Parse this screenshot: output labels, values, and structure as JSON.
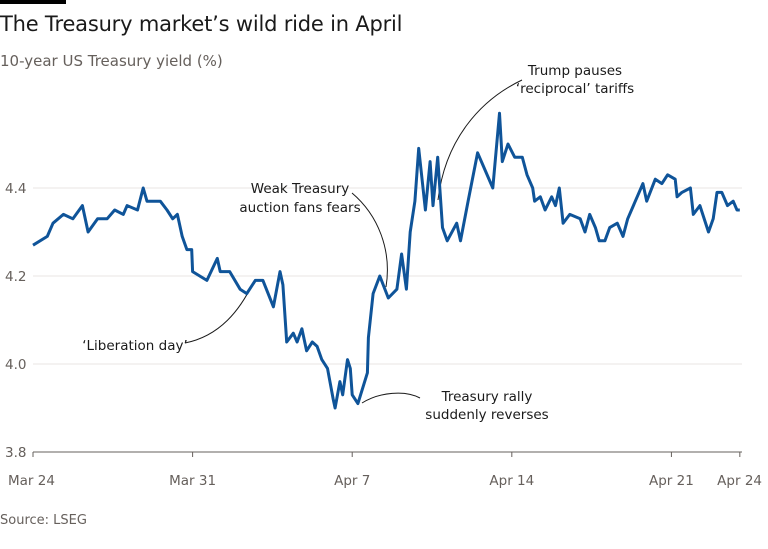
{
  "title": "The Treasury market’s wild ride in April",
  "subtitle": "10-year US Treasury yield (%)",
  "source": "Source: LSEG",
  "colors": {
    "line": "#0f5499",
    "grid": "#e9e6e3",
    "axis": "#66605c",
    "annotation": "#1a1a1a"
  },
  "chart_data": {
    "type": "line",
    "title": "The Treasury market’s wild ride in April",
    "ylabel": "10-year US Treasury yield (%)",
    "xlabel": "",
    "ylim": [
      3.8,
      4.6
    ],
    "yticks": [
      3.8,
      4.0,
      4.2,
      4.4
    ],
    "ytick_labels": [
      "3.8",
      "4.0",
      "4.2",
      "4.4"
    ],
    "xlim": [
      "Mar 24 00:00",
      "Apr 24 00:00"
    ],
    "xticks": [
      "Mar 24",
      "Mar 31",
      "Apr 7",
      "Apr 14",
      "Apr 21",
      "Apr 24"
    ],
    "grid": true,
    "legend": "none",
    "series": [
      {
        "points": [
          [
            "Mar 24 00:00",
            4.27
          ],
          [
            "Mar 24 15:00",
            4.29
          ],
          [
            "Mar 24 21:00",
            4.32
          ],
          [
            "Mar 25 08:00",
            4.34
          ],
          [
            "Mar 25 18:00",
            4.33
          ],
          [
            "Mar 26 04:00",
            4.36
          ],
          [
            "Mar 26 10:00",
            4.3
          ],
          [
            "Mar 26 20:00",
            4.33
          ],
          [
            "Mar 27 06:00",
            4.33
          ],
          [
            "Mar 27 14:00",
            4.35
          ],
          [
            "Mar 27 23:00",
            4.34
          ],
          [
            "Mar 28 03:00",
            4.36
          ],
          [
            "Mar 28 14:00",
            4.35
          ],
          [
            "Mar 28 20:00",
            4.4
          ],
          [
            "Mar 29 00:00",
            4.37
          ],
          [
            "Mar 29 14:00",
            4.37
          ],
          [
            "Mar 29 21:00",
            4.35
          ],
          [
            "Mar 30 03:00",
            4.33
          ],
          [
            "Mar 30 08:00",
            4.34
          ],
          [
            "Mar 30 13:00",
            4.29
          ],
          [
            "Mar 30 18:00",
            4.26
          ],
          [
            "Mar 30 23:00",
            4.26
          ],
          [
            "Mar 31 00:00",
            4.21
          ],
          [
            "Mar 31 15:00",
            4.19
          ],
          [
            "Apr 1 02:00",
            4.24
          ],
          [
            "Apr 1 05:00",
            4.21
          ],
          [
            "Apr 1 15:00",
            4.21
          ],
          [
            "Apr 2 02:00",
            4.17
          ],
          [
            "Apr 2 09:00",
            4.16
          ],
          [
            "Apr 2 18:00",
            4.19
          ],
          [
            "Apr 3 02:00",
            4.19
          ],
          [
            "Apr 3 13:00",
            4.13
          ],
          [
            "Apr 3 20:00",
            4.21
          ],
          [
            "Apr 3 23:00",
            4.18
          ],
          [
            "Apr 4 03:00",
            4.05
          ],
          [
            "Apr 4 10:00",
            4.07
          ],
          [
            "Apr 4 14:00",
            4.05
          ],
          [
            "Apr 4 19:00",
            4.08
          ],
          [
            "Apr 5 00:00",
            4.03
          ],
          [
            "Apr 5 06:00",
            4.05
          ],
          [
            "Apr 5 11:00",
            4.04
          ],
          [
            "Apr 5 16:00",
            4.01
          ],
          [
            "Apr 5 22:00",
            3.99
          ],
          [
            "Apr 6 04:00",
            3.92
          ],
          [
            "Apr 6 06:00",
            3.9
          ],
          [
            "Apr 6 11:00",
            3.96
          ],
          [
            "Apr 6 14:00",
            3.93
          ],
          [
            "Apr 6 19:00",
            4.01
          ],
          [
            "Apr 6 22:00",
            3.99
          ],
          [
            "Apr 7 00:00",
            3.93
          ],
          [
            "Apr 7 06:00",
            3.91
          ],
          [
            "Apr 7 16:00",
            3.98
          ],
          [
            "Apr 7 17:00",
            4.06
          ],
          [
            "Apr 7 22:00",
            4.16
          ],
          [
            "Apr 8 05:00",
            4.2
          ],
          [
            "Apr 8 14:00",
            4.15
          ],
          [
            "Apr 8 23:00",
            4.17
          ],
          [
            "Apr 9 04:00",
            4.25
          ],
          [
            "Apr 9 09:00",
            4.17
          ],
          [
            "Apr 9 13:00",
            4.3
          ],
          [
            "Apr 9 18:00",
            4.37
          ],
          [
            "Apr 9 22:00",
            4.49
          ],
          [
            "Apr 10 05:00",
            4.35
          ],
          [
            "Apr 10 10:00",
            4.46
          ],
          [
            "Apr 10 13:00",
            4.36
          ],
          [
            "Apr 10 18:00",
            4.47
          ],
          [
            "Apr 10 23:00",
            4.31
          ],
          [
            "Apr 11 04:00",
            4.28
          ],
          [
            "Apr 11 14:00",
            4.32
          ],
          [
            "Apr 11 18:00",
            4.28
          ],
          [
            "Apr 12 02:00",
            4.37
          ],
          [
            "Apr 12 12:00",
            4.48
          ],
          [
            "Apr 12 18:00",
            4.45
          ],
          [
            "Apr 13 04:00",
            4.4
          ],
          [
            "Apr 13 11:00",
            4.57
          ],
          [
            "Apr 13 14:00",
            4.46
          ],
          [
            "Apr 13 20:00",
            4.5
          ],
          [
            "Apr 14 03:00",
            4.47
          ],
          [
            "Apr 14 11:00",
            4.47
          ],
          [
            "Apr 14 16:00",
            4.43
          ],
          [
            "Apr 14 22:00",
            4.4
          ],
          [
            "Apr 15 00:00",
            4.37
          ],
          [
            "Apr 15 06:00",
            4.38
          ],
          [
            "Apr 15 11:00",
            4.35
          ],
          [
            "Apr 15 18:00",
            4.38
          ],
          [
            "Apr 15 22:00",
            4.36
          ],
          [
            "Apr 16 02:00",
            4.4
          ],
          [
            "Apr 16 06:00",
            4.32
          ],
          [
            "Apr 16 13:00",
            4.34
          ],
          [
            "Apr 17 00:00",
            4.33
          ],
          [
            "Apr 17 05:00",
            4.3
          ],
          [
            "Apr 17 10:00",
            4.34
          ],
          [
            "Apr 17 16:00",
            4.31
          ],
          [
            "Apr 17 20:00",
            4.28
          ],
          [
            "Apr 18 02:00",
            4.28
          ],
          [
            "Apr 18 07:00",
            4.31
          ],
          [
            "Apr 18 15:00",
            4.32
          ],
          [
            "Apr 18 21:00",
            4.29
          ],
          [
            "Apr 19 02:00",
            4.33
          ],
          [
            "Apr 19 08:00",
            4.36
          ],
          [
            "Apr 19 18:00",
            4.41
          ],
          [
            "Apr 19 22:00",
            4.37
          ],
          [
            "Apr 20 07:00",
            4.42
          ],
          [
            "Apr 20 14:00",
            4.41
          ],
          [
            "Apr 20 20:00",
            4.43
          ],
          [
            "Apr 21 04:00",
            4.42
          ],
          [
            "Apr 21 06:00",
            4.38
          ],
          [
            "Apr 21 11:00",
            4.39
          ],
          [
            "Apr 21 20:00",
            4.4
          ],
          [
            "Apr 21 23:00",
            4.34
          ],
          [
            "Apr 22 06:00",
            4.36
          ],
          [
            "Apr 22 15:00",
            4.3
          ],
          [
            "Apr 22 20:00",
            4.33
          ],
          [
            "Apr 23 00:00",
            4.39
          ],
          [
            "Apr 23 05:00",
            4.39
          ],
          [
            "Apr 23 11:00",
            4.36
          ],
          [
            "Apr 23 17:00",
            4.37
          ],
          [
            "Apr 23 21:00",
            4.35
          ],
          [
            "Apr 24 00:00",
            4.35
          ]
        ]
      }
    ],
    "annotations": [
      {
        "lines": [
          "Weak Treasury",
          "auction fans fears"
        ],
        "date": "Apr 8 14:00",
        "value": 4.15
      },
      {
        "lines": [
          "‘Liberation day’"
        ],
        "date": "Apr 2 18:00",
        "value": 4.19
      },
      {
        "lines": [
          "Trump pauses",
          "‘reciprocal’ tariffs"
        ],
        "date": "Apr 10 18:00",
        "value": 4.4
      },
      {
        "lines": [
          "Treasury rally",
          "suddenly reverses"
        ],
        "date": "Apr 7 06:00",
        "value": 3.91
      }
    ]
  }
}
